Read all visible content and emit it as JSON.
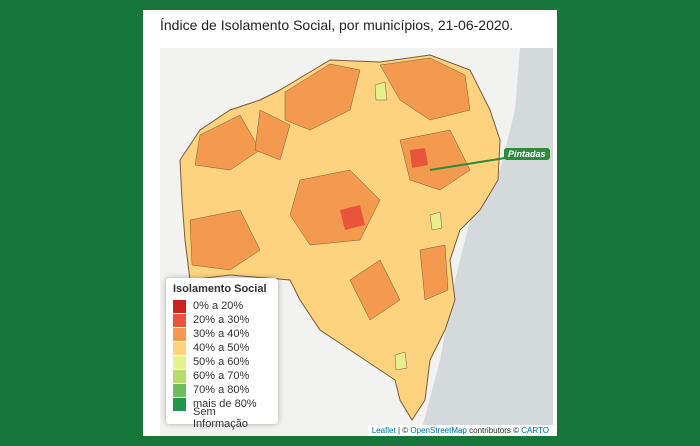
{
  "title": "Índice de Isolamento Social, por municípios, 21-06-2020.",
  "marker_label": "Pintadas",
  "legend": {
    "title": "Isolamento Social",
    "items": [
      {
        "label": "0% a 20%",
        "color": "#c9251c"
      },
      {
        "label": "20% a 30%",
        "color": "#e8553a"
      },
      {
        "label": "30% a 40%",
        "color": "#f39a4f"
      },
      {
        "label": "40% a 50%",
        "color": "#fdd380"
      },
      {
        "label": "50% a 60%",
        "color": "#e8f08e"
      },
      {
        "label": "60% a 70%",
        "color": "#b7dc6b"
      },
      {
        "label": "70% a 80%",
        "color": "#6dbd5c"
      },
      {
        "label": "mais de 80%",
        "color": "#22964a"
      },
      {
        "label": "Sem Informação",
        "color": null
      }
    ]
  },
  "attribution": {
    "leaflet": "Leaflet",
    "sep": "| ©",
    "osm": "OpenStreetMap",
    "contributors": "contributors ©",
    "carto": "CARTO"
  }
}
